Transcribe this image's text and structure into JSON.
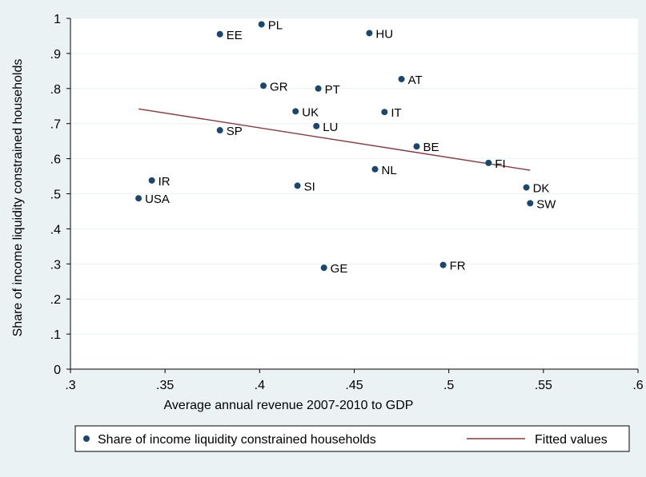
{
  "chart_data": {
    "type": "scatter",
    "xlabel": "Average annual revenue 2007-2010 to GDP",
    "ylabel": "Share of income liquidity constrained households",
    "xlim": [
      0.3,
      0.6
    ],
    "ylim": [
      0,
      1
    ],
    "x_ticks": [
      {
        "value": 0.3,
        "label": ".3"
      },
      {
        "value": 0.35,
        "label": ".35"
      },
      {
        "value": 0.4,
        "label": ".4"
      },
      {
        "value": 0.45,
        "label": ".45"
      },
      {
        "value": 0.5,
        "label": ".5"
      },
      {
        "value": 0.55,
        "label": ".55"
      },
      {
        "value": 0.6,
        "label": ".6"
      }
    ],
    "y_ticks": [
      {
        "value": 0,
        "label": "0"
      },
      {
        "value": 0.1,
        "label": ".1"
      },
      {
        "value": 0.2,
        "label": ".2"
      },
      {
        "value": 0.3,
        "label": ".3"
      },
      {
        "value": 0.4,
        "label": ".4"
      },
      {
        "value": 0.5,
        "label": ".5"
      },
      {
        "value": 0.6,
        "label": ".6"
      },
      {
        "value": 0.7,
        "label": ".7"
      },
      {
        "value": 0.8,
        "label": ".8"
      },
      {
        "value": 0.9,
        "label": ".9"
      },
      {
        "value": 1,
        "label": "1"
      }
    ],
    "grid": true,
    "legend_position": "bottom",
    "series": [
      {
        "name": "Share of income liquidity constrained households",
        "kind": "scatter",
        "color": "#1a476f",
        "points": [
          {
            "label": "PL",
            "x": 0.401,
            "y": 0.983
          },
          {
            "label": "EE",
            "x": 0.379,
            "y": 0.955
          },
          {
            "label": "HU",
            "x": 0.458,
            "y": 0.958
          },
          {
            "label": "AT",
            "x": 0.475,
            "y": 0.827
          },
          {
            "label": "GR",
            "x": 0.402,
            "y": 0.808
          },
          {
            "label": "PT",
            "x": 0.431,
            "y": 0.8
          },
          {
            "label": "UK",
            "x": 0.419,
            "y": 0.735
          },
          {
            "label": "IT",
            "x": 0.466,
            "y": 0.733
          },
          {
            "label": "LU",
            "x": 0.43,
            "y": 0.693
          },
          {
            "label": "SP",
            "x": 0.379,
            "y": 0.681
          },
          {
            "label": "BE",
            "x": 0.483,
            "y": 0.635
          },
          {
            "label": "FI",
            "x": 0.521,
            "y": 0.588
          },
          {
            "label": "NL",
            "x": 0.461,
            "y": 0.57
          },
          {
            "label": "IR",
            "x": 0.343,
            "y": 0.538
          },
          {
            "label": "SI",
            "x": 0.42,
            "y": 0.523
          },
          {
            "label": "DK",
            "x": 0.541,
            "y": 0.518
          },
          {
            "label": "USA",
            "x": 0.336,
            "y": 0.487
          },
          {
            "label": "SW",
            "x": 0.543,
            "y": 0.473
          },
          {
            "label": "FR",
            "x": 0.497,
            "y": 0.297
          },
          {
            "label": "GE",
            "x": 0.434,
            "y": 0.289
          }
        ]
      },
      {
        "name": "Fitted values",
        "kind": "line",
        "color": "#90353b",
        "points": [
          {
            "x": 0.336,
            "y": 0.742
          },
          {
            "x": 0.543,
            "y": 0.567
          }
        ]
      }
    ]
  }
}
